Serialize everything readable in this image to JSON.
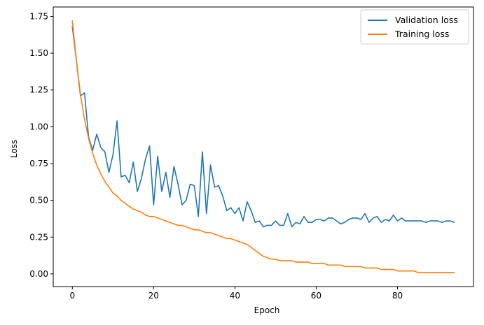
{
  "chart_data": {
    "type": "line",
    "title": "",
    "xlabel": "Epoch",
    "ylabel": "Loss",
    "xlim": [
      -4.7,
      98.7
    ],
    "ylim": [
      -0.086,
      1.814
    ],
    "xticks": [
      0,
      20,
      40,
      60,
      80
    ],
    "yticks": [
      0.0,
      0.25,
      0.5,
      0.75,
      1.0,
      1.25,
      1.5,
      1.75
    ],
    "ytick_labels": [
      "0.00",
      "0.25",
      "0.50",
      "0.75",
      "1.00",
      "1.25",
      "1.50",
      "1.75"
    ],
    "grid": false,
    "legend_position": "top-right",
    "series": [
      {
        "name": "Validation loss",
        "color": "#1f77b4",
        "x": [
          0,
          1,
          2,
          3,
          4,
          5,
          6,
          7,
          8,
          9,
          10,
          11,
          12,
          13,
          14,
          15,
          16,
          17,
          18,
          19,
          20,
          21,
          22,
          23,
          24,
          25,
          26,
          27,
          28,
          29,
          30,
          31,
          32,
          33,
          34,
          35,
          36,
          37,
          38,
          39,
          40,
          41,
          42,
          43,
          44,
          45,
          46,
          47,
          48,
          49,
          50,
          51,
          52,
          53,
          54,
          55,
          56,
          57,
          58,
          59,
          60,
          61,
          62,
          63,
          64,
          65,
          66,
          67,
          68,
          69,
          70,
          71,
          72,
          73,
          74,
          75,
          76,
          77,
          78,
          79,
          80,
          81,
          82,
          83,
          84,
          85,
          86,
          87,
          88,
          89,
          90,
          91,
          92,
          93,
          94
        ],
        "values": [
          1.68,
          1.45,
          1.21,
          1.23,
          0.93,
          0.84,
          0.95,
          0.86,
          0.83,
          0.69,
          0.81,
          1.04,
          0.66,
          0.67,
          0.62,
          0.76,
          0.56,
          0.65,
          0.78,
          0.87,
          0.47,
          0.8,
          0.56,
          0.69,
          0.52,
          0.73,
          0.61,
          0.47,
          0.5,
          0.61,
          0.6,
          0.39,
          0.83,
          0.41,
          0.74,
          0.59,
          0.6,
          0.53,
          0.43,
          0.45,
          0.41,
          0.45,
          0.36,
          0.49,
          0.43,
          0.35,
          0.36,
          0.32,
          0.33,
          0.33,
          0.36,
          0.33,
          0.33,
          0.41,
          0.32,
          0.35,
          0.34,
          0.39,
          0.35,
          0.35,
          0.37,
          0.37,
          0.36,
          0.38,
          0.38,
          0.36,
          0.34,
          0.35,
          0.37,
          0.38,
          0.38,
          0.37,
          0.41,
          0.35,
          0.38,
          0.39,
          0.35,
          0.37,
          0.36,
          0.4,
          0.36,
          0.38,
          0.36,
          0.36,
          0.36,
          0.36,
          0.36,
          0.35,
          0.36,
          0.36,
          0.36,
          0.35,
          0.36,
          0.36,
          0.35
        ]
      },
      {
        "name": "Training loss",
        "color": "#ff7f0e",
        "x": [
          0,
          1,
          2,
          3,
          4,
          5,
          6,
          7,
          8,
          9,
          10,
          11,
          12,
          13,
          14,
          15,
          16,
          17,
          18,
          19,
          20,
          21,
          22,
          23,
          24,
          25,
          26,
          27,
          28,
          29,
          30,
          31,
          32,
          33,
          34,
          35,
          36,
          37,
          38,
          39,
          40,
          41,
          42,
          43,
          44,
          45,
          46,
          47,
          48,
          49,
          50,
          51,
          52,
          53,
          54,
          55,
          56,
          57,
          58,
          59,
          60,
          61,
          62,
          63,
          64,
          65,
          66,
          67,
          68,
          69,
          70,
          71,
          72,
          73,
          74,
          75,
          76,
          77,
          78,
          79,
          80,
          81,
          82,
          83,
          84,
          85,
          86,
          87,
          88,
          89,
          90,
          91,
          92,
          93,
          94
        ],
        "values": [
          1.72,
          1.45,
          1.22,
          1.05,
          0.92,
          0.82,
          0.74,
          0.68,
          0.63,
          0.59,
          0.55,
          0.53,
          0.5,
          0.48,
          0.46,
          0.44,
          0.43,
          0.42,
          0.4,
          0.39,
          0.39,
          0.38,
          0.37,
          0.36,
          0.35,
          0.34,
          0.33,
          0.33,
          0.32,
          0.31,
          0.3,
          0.3,
          0.29,
          0.28,
          0.28,
          0.27,
          0.26,
          0.25,
          0.24,
          0.24,
          0.23,
          0.22,
          0.21,
          0.2,
          0.18,
          0.16,
          0.14,
          0.12,
          0.11,
          0.1,
          0.1,
          0.09,
          0.09,
          0.09,
          0.09,
          0.08,
          0.08,
          0.08,
          0.08,
          0.07,
          0.07,
          0.07,
          0.07,
          0.06,
          0.06,
          0.06,
          0.06,
          0.05,
          0.05,
          0.05,
          0.05,
          0.05,
          0.04,
          0.04,
          0.04,
          0.04,
          0.03,
          0.03,
          0.03,
          0.03,
          0.02,
          0.02,
          0.02,
          0.02,
          0.02,
          0.01,
          0.01,
          0.01,
          0.01,
          0.01,
          0.01,
          0.01,
          0.01,
          0.01,
          0.01
        ]
      }
    ]
  }
}
